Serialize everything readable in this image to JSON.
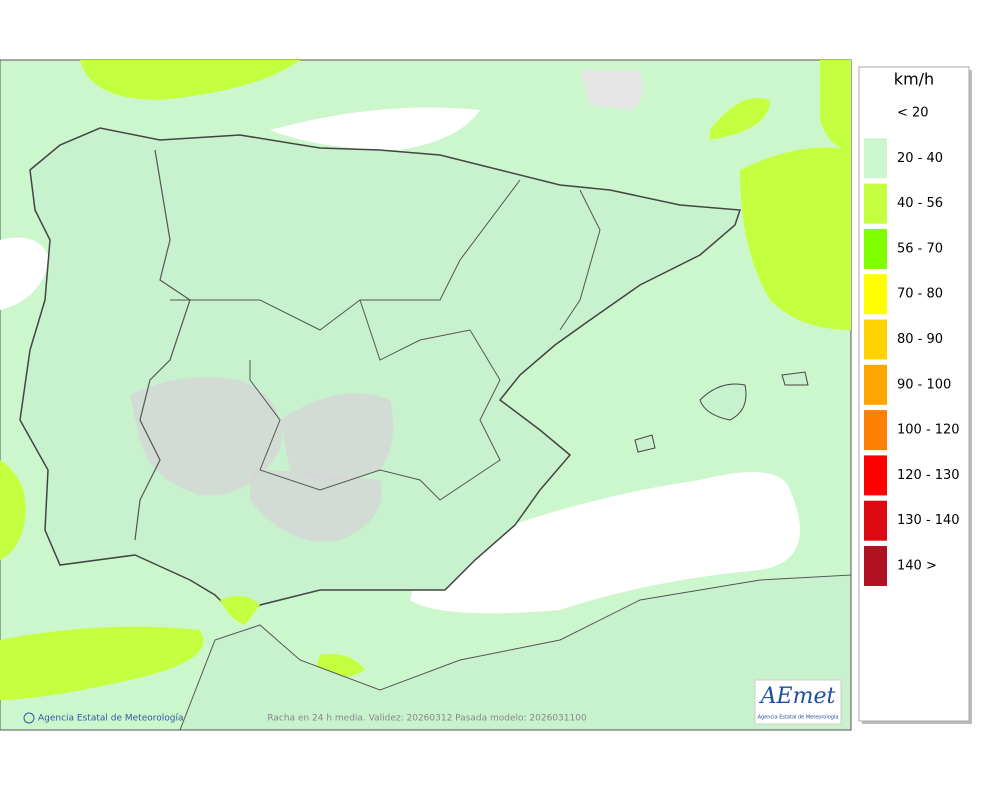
{
  "legend": {
    "title": "km/h",
    "items": [
      {
        "label": "< 20",
        "color": "#ffffff"
      },
      {
        "label": "20 - 40",
        "color": "#ccf7cc"
      },
      {
        "label": "40 - 56",
        "color": "#c4ff40"
      },
      {
        "label": "56 - 70",
        "color": "#7fff00"
      },
      {
        "label": "70 - 80",
        "color": "#ffff00"
      },
      {
        "label": "80 - 90",
        "color": "#ffd200"
      },
      {
        "label": "90 - 100",
        "color": "#ffa500"
      },
      {
        "label": "100 - 120",
        "color": "#ff8000"
      },
      {
        "label": "120 - 130",
        "color": "#ff0000"
      },
      {
        "label": "130 - 140",
        "color": "#dc0a10"
      },
      {
        "label": "140 >",
        "color": "#b01020"
      }
    ]
  },
  "footer": {
    "credit": "Agencia Estatal de Meteorología",
    "caption": "Racha en 24 h media. Validez: 20260312 Pasada modelo: 2026031100"
  },
  "logo": {
    "name": "AEmet",
    "subtitle": "Agencia Estatal de Meteorología"
  }
}
